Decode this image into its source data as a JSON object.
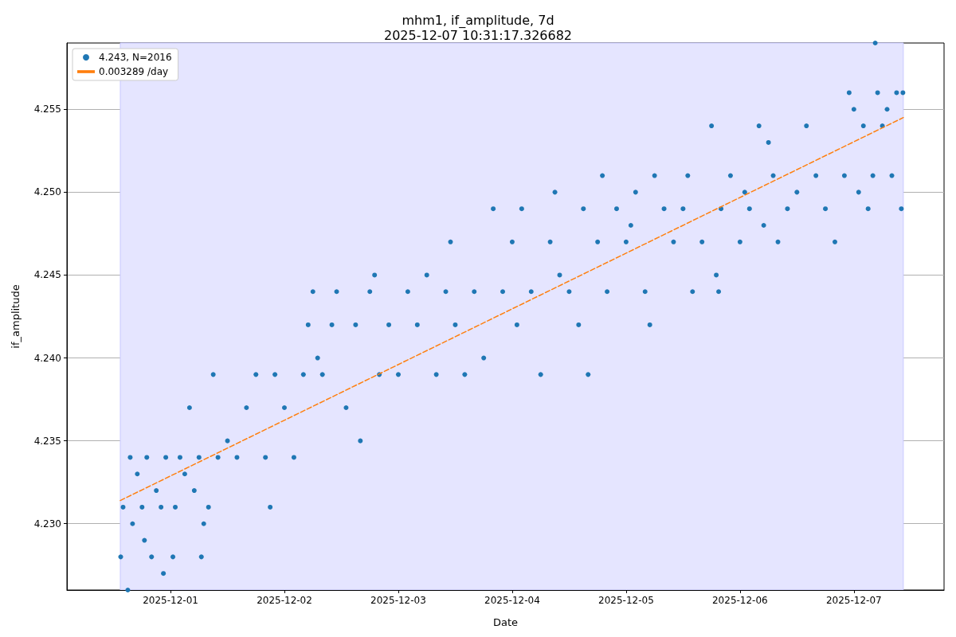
{
  "chart_data": {
    "type": "scatter",
    "title": "mhm1, if_amplitude, 7d",
    "subtitle": "2025-12-07 10:31:17.326682",
    "xlabel": "Date",
    "ylabel": "if_amplitude",
    "xlim": [
      "2025-11-30T02:10",
      "2025-12-07T19:00"
    ],
    "xticks": [
      "2025-12-01",
      "2025-12-02",
      "2025-12-03",
      "2025-12-04",
      "2025-12-05",
      "2025-12-06",
      "2025-12-07"
    ],
    "ylim": [
      4.226,
      4.259
    ],
    "yticks": [
      {
        "value": 4.23,
        "label": "4.230"
      },
      4.235,
      {
        "value": 4.24,
        "label": "4.240"
      },
      4.245,
      {
        "value": 4.25,
        "label": "4.250"
      },
      4.255
    ],
    "grid": true,
    "legend": "top left",
    "bands": [
      {
        "axis": "x",
        "from": "2025-11-30T13:25",
        "to": "2025-12-07T10:25",
        "color": "#e5e5ff"
      }
    ],
    "series": [
      {
        "name": "4.243, N=2016",
        "marker": "circle",
        "color": "#1f77b4",
        "x": [
          "2025-11-30T13:30",
          "2025-11-30T14:00",
          "2025-11-30T15:00",
          "2025-11-30T15:30",
          "2025-11-30T16:00",
          "2025-11-30T17:00",
          "2025-11-30T18:00",
          "2025-11-30T18:30",
          "2025-11-30T19:00",
          "2025-11-30T20:00",
          "2025-11-30T21:00",
          "2025-11-30T22:00",
          "2025-11-30T22:30",
          "2025-11-30T23:00",
          "2025-12-01T00:30",
          "2025-12-01T01:00",
          "2025-12-01T02:00",
          "2025-12-01T03:00",
          "2025-12-01T04:00",
          "2025-12-01T05:00",
          "2025-12-01T06:00",
          "2025-12-01T06:30",
          "2025-12-01T07:00",
          "2025-12-01T08:00",
          "2025-12-01T09:00",
          "2025-12-01T10:00",
          "2025-12-01T12:00",
          "2025-12-01T14:00",
          "2025-12-01T16:00",
          "2025-12-01T18:00",
          "2025-12-01T20:00",
          "2025-12-01T21:00",
          "2025-12-01T22:00",
          "2025-12-02T00:00",
          "2025-12-02T02:00",
          "2025-12-02T04:00",
          "2025-12-02T05:00",
          "2025-12-02T06:00",
          "2025-12-02T07:00",
          "2025-12-02T08:00",
          "2025-12-02T10:00",
          "2025-12-02T11:00",
          "2025-12-02T13:00",
          "2025-12-02T15:00",
          "2025-12-02T16:00",
          "2025-12-02T18:00",
          "2025-12-02T19:00",
          "2025-12-02T20:00",
          "2025-12-02T22:00",
          "2025-12-03T00:00",
          "2025-12-03T02:00",
          "2025-12-03T04:00",
          "2025-12-03T06:00",
          "2025-12-03T08:00",
          "2025-12-03T10:00",
          "2025-12-03T11:00",
          "2025-12-03T12:00",
          "2025-12-03T14:00",
          "2025-12-03T16:00",
          "2025-12-03T18:00",
          "2025-12-03T20:00",
          "2025-12-03T22:00",
          "2025-12-04T00:00",
          "2025-12-04T01:00",
          "2025-12-04T02:00",
          "2025-12-04T04:00",
          "2025-12-04T06:00",
          "2025-12-04T08:00",
          "2025-12-04T09:00",
          "2025-12-04T10:00",
          "2025-12-04T12:00",
          "2025-12-04T14:00",
          "2025-12-04T15:00",
          "2025-12-04T16:00",
          "2025-12-04T18:00",
          "2025-12-04T19:00",
          "2025-12-04T20:00",
          "2025-12-04T22:00",
          "2025-12-05T00:00",
          "2025-12-05T01:00",
          "2025-12-05T02:00",
          "2025-12-05T04:00",
          "2025-12-05T05:00",
          "2025-12-05T06:00",
          "2025-12-05T08:00",
          "2025-12-05T10:00",
          "2025-12-05T12:00",
          "2025-12-05T13:00",
          "2025-12-05T14:00",
          "2025-12-05T16:00",
          "2025-12-05T18:00",
          "2025-12-05T19:00",
          "2025-12-05T19:30",
          "2025-12-05T20:00",
          "2025-12-05T22:00",
          "2025-12-06T00:00",
          "2025-12-06T01:00",
          "2025-12-06T02:00",
          "2025-12-06T04:00",
          "2025-12-06T05:00",
          "2025-12-06T06:00",
          "2025-12-06T07:00",
          "2025-12-06T08:00",
          "2025-12-06T10:00",
          "2025-12-06T12:00",
          "2025-12-06T14:00",
          "2025-12-06T16:00",
          "2025-12-06T18:00",
          "2025-12-06T20:00",
          "2025-12-06T22:00",
          "2025-12-06T23:00",
          "2025-12-07T00:00",
          "2025-12-07T01:00",
          "2025-12-07T02:00",
          "2025-12-07T03:00",
          "2025-12-07T04:00",
          "2025-12-07T04:30",
          "2025-12-07T05:00",
          "2025-12-07T06:00",
          "2025-12-07T07:00",
          "2025-12-07T08:00",
          "2025-12-07T09:00",
          "2025-12-07T10:00",
          "2025-12-07T10:20"
        ],
        "values": [
          4.228,
          4.231,
          4.226,
          4.234,
          4.23,
          4.233,
          4.231,
          4.229,
          4.234,
          4.228,
          4.232,
          4.231,
          4.227,
          4.234,
          4.228,
          4.231,
          4.234,
          4.233,
          4.237,
          4.232,
          4.234,
          4.228,
          4.23,
          4.231,
          4.239,
          4.234,
          4.235,
          4.234,
          4.237,
          4.239,
          4.234,
          4.231,
          4.239,
          4.237,
          4.234,
          4.239,
          4.242,
          4.244,
          4.24,
          4.239,
          4.242,
          4.244,
          4.237,
          4.242,
          4.235,
          4.244,
          4.245,
          4.239,
          4.242,
          4.239,
          4.244,
          4.242,
          4.245,
          4.239,
          4.244,
          4.247,
          4.242,
          4.239,
          4.244,
          4.24,
          4.249,
          4.244,
          4.247,
          4.242,
          4.249,
          4.244,
          4.239,
          4.247,
          4.25,
          4.245,
          4.244,
          4.242,
          4.249,
          4.239,
          4.247,
          4.251,
          4.244,
          4.249,
          4.247,
          4.248,
          4.25,
          4.244,
          4.242,
          4.251,
          4.249,
          4.247,
          4.249,
          4.251,
          4.244,
          4.247,
          4.254,
          4.245,
          4.244,
          4.249,
          4.251,
          4.247,
          4.25,
          4.249,
          4.254,
          4.248,
          4.253,
          4.251,
          4.247,
          4.249,
          4.25,
          4.254,
          4.251,
          4.249,
          4.247,
          4.251,
          4.256,
          4.255,
          4.25,
          4.254,
          4.249,
          4.251,
          4.259,
          4.256,
          4.254,
          4.255,
          4.251,
          4.256,
          4.249,
          4.256
        ]
      },
      {
        "name": "0.003289 /day",
        "type": "line",
        "marker": "none",
        "line_style": "dashed",
        "color": "#ff7f0e",
        "x": [
          "2025-11-30T13:25",
          "2025-12-07T10:25"
        ],
        "values": [
          4.2314,
          4.2545
        ]
      }
    ]
  }
}
